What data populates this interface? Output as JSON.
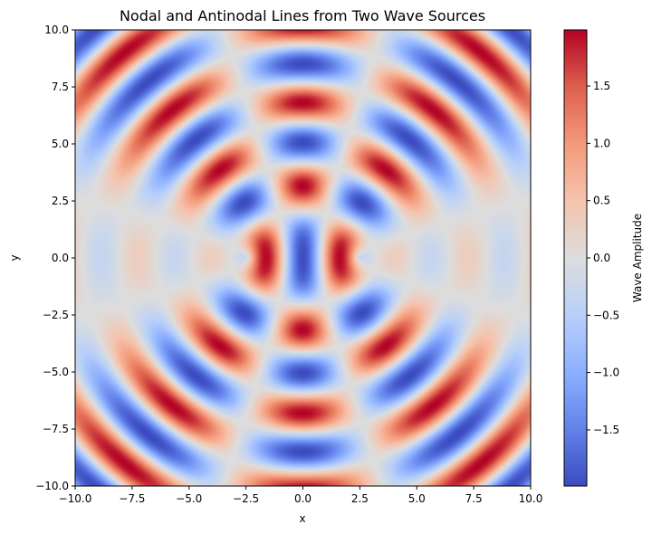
{
  "chart_data": {
    "type": "heatmap",
    "title": "Nodal and Antinodal Lines from Two Wave Sources",
    "xlabel": "x",
    "ylabel": "y",
    "xlim": [
      -10,
      10
    ],
    "ylim": [
      -10,
      10
    ],
    "x_ticks": [
      -10,
      -7.5,
      -5,
      -2.5,
      0,
      2.5,
      5,
      7.5,
      10
    ],
    "y_ticks": [
      -10,
      -7.5,
      -5,
      -2.5,
      0,
      2.5,
      5,
      7.5,
      10
    ],
    "x_tick_labels": [
      "−10.0",
      "−7.5",
      "−5.0",
      "−2.5",
      "0.0",
      "2.5",
      "5.0",
      "7.5",
      "10.0"
    ],
    "y_tick_labels": [
      "−10.0",
      "−7.5",
      "−5.0",
      "−2.5",
      "0.0",
      "2.5",
      "5.0",
      "7.5",
      "10.0"
    ],
    "colormap": "coolwarm",
    "colorbar": {
      "label": "Wave Amplitude",
      "vmin": -1.99,
      "vmax": 1.99,
      "ticks": [
        -1.5,
        -1.0,
        -0.5,
        0.0,
        0.5,
        1.0,
        1.5
      ],
      "tick_labels": [
        "−1.5",
        "−1.0",
        "−0.5",
        "0.0",
        "0.5",
        "1.0",
        "1.5"
      ]
    },
    "sources": [
      {
        "x": -2.5,
        "y": 0
      },
      {
        "x": 2.5,
        "y": 0
      }
    ],
    "wavenumber": 1.95,
    "amplitude_formula": "sin(k*r1) + sin(k*r2)",
    "grid": false
  }
}
